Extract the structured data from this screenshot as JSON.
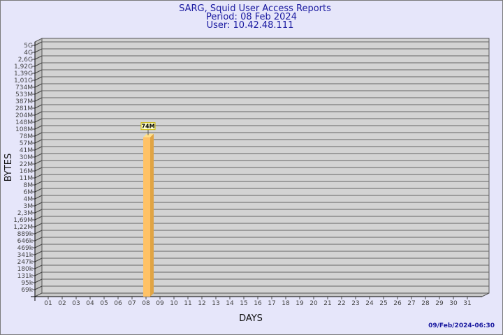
{
  "chart_data": {
    "type": "bar",
    "title": [
      "SARG, Squid User Access Reports",
      "Period: 08 Feb 2024",
      "User: 10.42.48.111"
    ],
    "xlabel": "DAYS",
    "ylabel": "BYTES",
    "y_scale": "log",
    "y_ticks": [
      "5G",
      "4G",
      "2,6G",
      "1,92G",
      "1,39G",
      "1,01G",
      "734M",
      "533M",
      "387M",
      "281M",
      "204M",
      "148M",
      "108M",
      "78M",
      "57M",
      "41M",
      "30M",
      "22M",
      "16M",
      "11M",
      "8M",
      "6M",
      "4M",
      "3M",
      "2,3M",
      "1,69M",
      "1,22M",
      "889k",
      "646k",
      "469k",
      "341k",
      "247k",
      "180k",
      "131k",
      "95k",
      "69k"
    ],
    "categories": [
      "01",
      "02",
      "03",
      "04",
      "05",
      "06",
      "07",
      "08",
      "09",
      "10",
      "11",
      "12",
      "13",
      "14",
      "15",
      "16",
      "17",
      "18",
      "19",
      "20",
      "21",
      "22",
      "23",
      "24",
      "25",
      "26",
      "27",
      "28",
      "29",
      "30",
      "31"
    ],
    "values": [
      0,
      0,
      0,
      0,
      0,
      0,
      0,
      74000000,
      0,
      0,
      0,
      0,
      0,
      0,
      0,
      0,
      0,
      0,
      0,
      0,
      0,
      0,
      0,
      0,
      0,
      0,
      0,
      0,
      0,
      0,
      0
    ],
    "data_labels": {
      "08": "74M"
    },
    "grid": true,
    "bar_color": "#ffc266",
    "plot_bg": "#d3d3d3",
    "background": "#e6e6fa",
    "footer": "09/Feb/2024-06:30"
  }
}
